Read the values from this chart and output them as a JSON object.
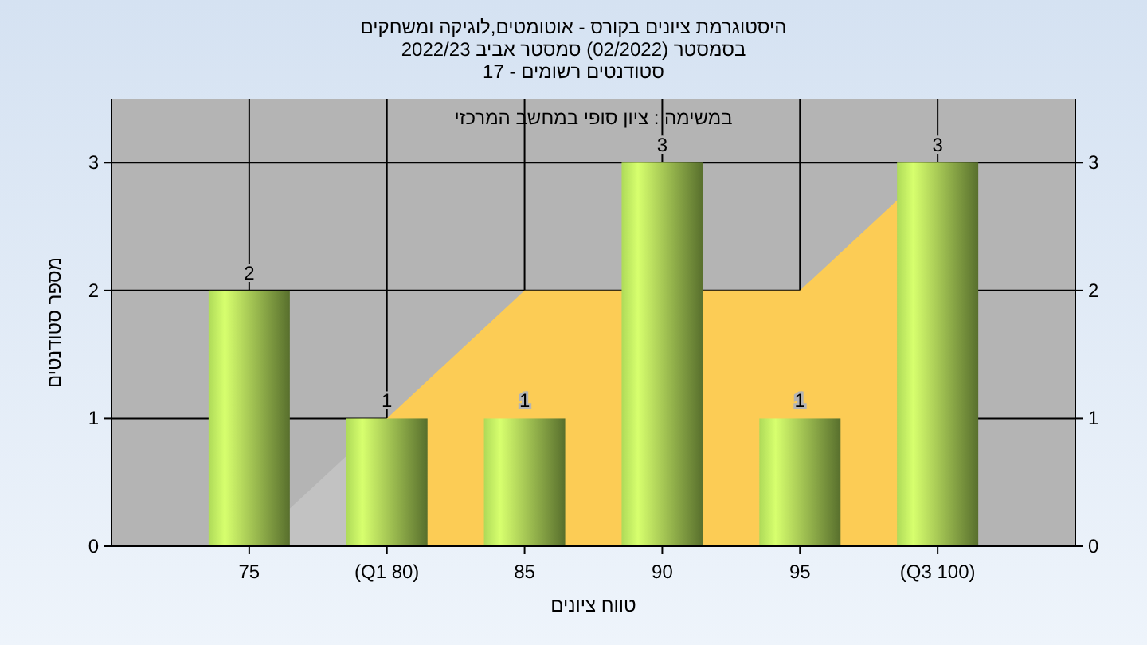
{
  "chart_data": {
    "type": "bar",
    "title": "היסטוגרמת ציונים בקורס - אוטומטים,לוגיקה ומשחקים",
    "subtitle": "בסמסטר  (02/2022)  סמסטר אביב 2022/23\nסטודנטים רשומים - 17",
    "xlabel": "טווח ציונים",
    "ylabel": "מספר סטודנטים",
    "annotations": [
      "במשימה : ציון סופי במחשב המרכזי"
    ],
    "categories": [
      "75",
      "(Q1 80)",
      "85",
      "90",
      "95",
      "(Q3 100)"
    ],
    "series": [
      {
        "type": "area",
        "color": "#c2c2c2",
        "values": [
          0,
          1,
          null,
          null,
          null,
          null
        ]
      },
      {
        "type": "area",
        "color": "#fccc55",
        "x": [
          "(Q1 80)",
          "85",
          "95",
          "(Q3 100)"
        ],
        "values": [
          1,
          2,
          2,
          3
        ]
      },
      {
        "color": "#9cc450",
        "values": [
          2,
          1,
          1,
          3,
          1,
          3
        ],
        "value_labels": [
          "2",
          "1",
          "1",
          "3",
          "1",
          "3"
        ]
      }
    ],
    "ylim": [
      0,
      3.5
    ],
    "yticks": [
      0,
      1,
      2,
      3
    ],
    "y2lim": [
      0,
      3.5
    ],
    "y2ticks": [
      0,
      1,
      2,
      3
    ],
    "grid": true
  }
}
